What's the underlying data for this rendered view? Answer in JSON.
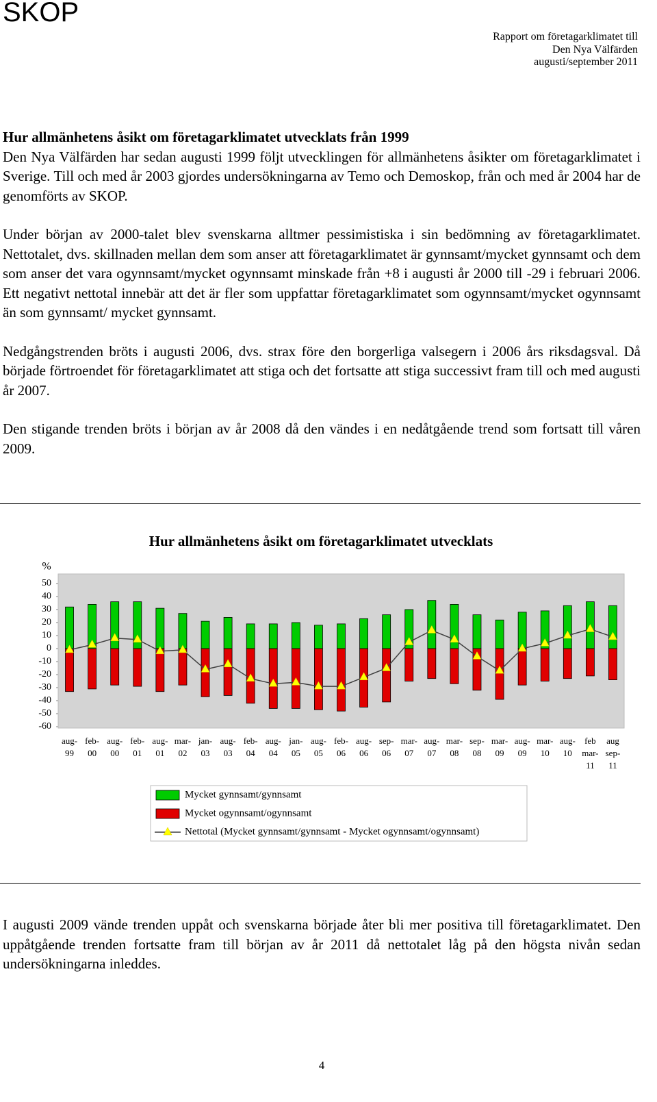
{
  "header": {
    "logo": "SKOP",
    "report_lines": [
      "Rapport om företagarklimatet till",
      "Den Nya Välfärden",
      "augusti/september 2011"
    ]
  },
  "heading": "Hur allmänhetens åsikt om företagarklimatet utvecklats från 1999",
  "paragraphs": [
    "Den Nya Välfärden har sedan augusti 1999 följt utvecklingen för allmänhetens åsikter om företagarklimatet i Sverige. Till och med år 2003 gjordes undersökningarna av Temo och Demoskop, från och med år 2004 har de genomförts av SKOP.",
    "Under början av 2000-talet blev svenskarna alltmer pessimistiska i sin bedömning av företagarklimatet. Nettotalet, dvs. skillnaden mellan dem som anser att företagarklimatet är gynnsamt/mycket gynnsamt och dem som anser det vara ogynnsamt/mycket ogynnsamt minskade från +8 i augusti år 2000 till -29 i februari 2006. Ett negativt nettotal innebär att det är fler som uppfattar företagarklimatet som ogynnsamt/mycket ogynnsamt än som gynnsamt/ mycket gynnsamt.",
    "Nedgångstrenden bröts i augusti 2006, dvs. strax före den borgerliga valsegern i 2006 års riksdagsval. Då började förtroendet för företagarklimatet att stiga och det fortsatte att stiga successivt fram till och med augusti år 2007.",
    "Den stigande trenden bröts i början av år 2008 då den vändes i en nedåtgående trend som fortsatt till våren 2009."
  ],
  "chart_data": {
    "type": "bar",
    "title": "Hur allmänhetens åsikt om företagarklimatet utvecklats",
    "y_label": "%",
    "categories": [
      "aug-99",
      "feb-00",
      "aug-00",
      "feb-01",
      "aug-01",
      "mar-02",
      "jan-03",
      "aug-03",
      "feb-04",
      "aug-04",
      "jan-05",
      "aug-05",
      "feb-06",
      "aug-06",
      "sep-06",
      "mar-07",
      "aug-07",
      "mar-08",
      "sep-08",
      "mar-09",
      "aug-09",
      "mar-10",
      "aug-10",
      "feb mar-11",
      "aug sep-11"
    ],
    "series": [
      {
        "name": "Mycket gynnsamt/gynnsamt",
        "type": "bar",
        "color": "#00cc00",
        "values": [
          32,
          34,
          36,
          36,
          31,
          27,
          21,
          24,
          19,
          19,
          20,
          18,
          19,
          23,
          26,
          30,
          37,
          34,
          26,
          22,
          28,
          29,
          33,
          36,
          33
        ]
      },
      {
        "name": "Mycket ogynnsamt/ogynnsamt",
        "type": "bar",
        "color": "#e00000",
        "values": [
          -33,
          -31,
          -28,
          -29,
          -33,
          -28,
          -37,
          -36,
          -42,
          -46,
          -46,
          -47,
          -48,
          -45,
          -41,
          -25,
          -23,
          -27,
          -32,
          -39,
          -28,
          -25,
          -23,
          -21,
          -24
        ]
      },
      {
        "name": "Nettotal (Mycket gynnsamt/gynnsamt - Mycket ogynnsamt/ogynnsamt)",
        "type": "line",
        "color": "#404040",
        "marker_color": "#ffff00",
        "values": [
          -1,
          3,
          8,
          7,
          -2,
          -1,
          -16,
          -12,
          -23,
          -27,
          -26,
          -29,
          -29,
          -22,
          -15,
          5,
          14,
          7,
          -6,
          -17,
          0,
          4,
          10,
          15,
          9
        ]
      }
    ],
    "ylim": [
      -60,
      50
    ],
    "yticks": [
      50,
      40,
      30,
      20,
      10,
      0,
      -10,
      -20,
      -30,
      -40,
      -50,
      -60
    ],
    "grid": false,
    "legend": "bottom"
  },
  "closing_paragraph": "I augusti 2009 vände trenden uppåt och svenskarna började åter bli mer positiva till företagarklimatet. Den uppåtgående trenden fortsatte fram till början av år 2011 då nettotalet låg på den högsta nivån sedan undersökningarna inleddes.",
  "page_number": "4"
}
